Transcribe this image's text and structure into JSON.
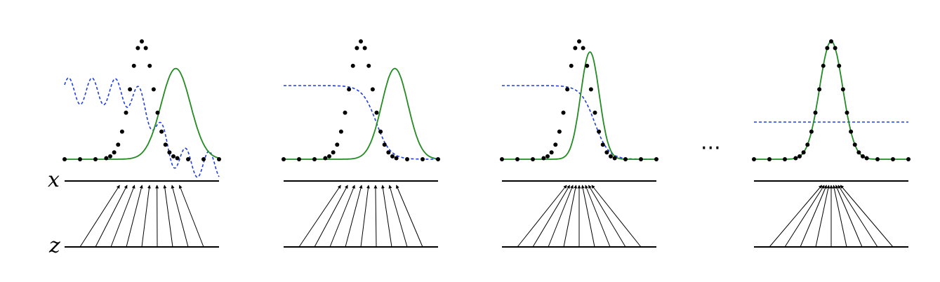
{
  "labels": {
    "x": "x",
    "z": "z",
    "ellipsis": "···"
  },
  "colors": {
    "data": "#000000",
    "model": "#228b22",
    "discriminator": "#1f3fe0",
    "axis": "#000000"
  },
  "panels": [
    {
      "step": 1,
      "model_mean": 0.72,
      "model_spread": 0.095,
      "model_height": 0.77,
      "discriminator": "oscillating",
      "mapping_spread": 0.43
    },
    {
      "step": 2,
      "model_mean": 0.72,
      "model_spread": 0.085,
      "model_height": 0.77,
      "discriminator": "sigmoid",
      "mapping_spread": 0.4
    },
    {
      "step": 3,
      "model_mean": 0.57,
      "model_spread": 0.06,
      "model_height": 0.91,
      "discriminator": "sigmoid",
      "mapping_spread": 0.18
    },
    {
      "step": 4,
      "model_mean": 0.5,
      "model_spread": 0.075,
      "model_height": 1.0,
      "discriminator": "flat",
      "mapping_spread": 0.1
    }
  ]
}
